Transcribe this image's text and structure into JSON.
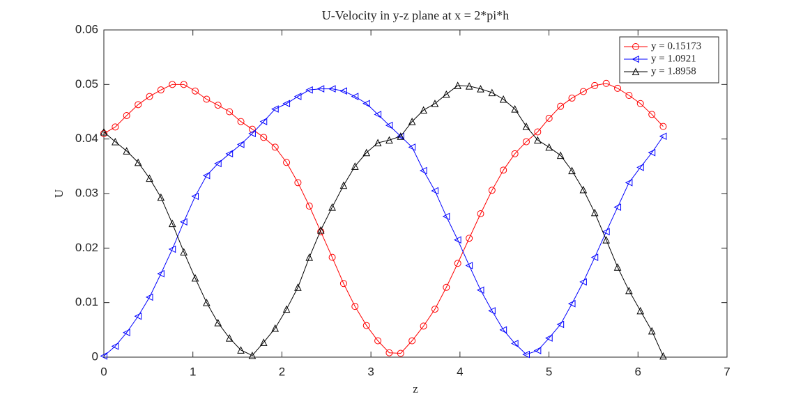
{
  "chart_data": {
    "type": "line",
    "title": "U-Velocity in y-z plane at x = 2*pi*h",
    "x_label": "z",
    "y_label": "U",
    "x": [
      0,
      0.128,
      0.256,
      0.385,
      0.513,
      0.641,
      0.769,
      0.898,
      1.026,
      1.154,
      1.282,
      1.411,
      1.539,
      1.667,
      1.795,
      1.924,
      2.052,
      2.18,
      2.308,
      2.437,
      2.565,
      2.693,
      2.821,
      2.95,
      3.078,
      3.206,
      3.334,
      3.462,
      3.591,
      3.719,
      3.847,
      3.975,
      4.104,
      4.232,
      4.36,
      4.488,
      4.617,
      4.745,
      4.873,
      5.001,
      5.13,
      5.258,
      5.386,
      5.514,
      5.643,
      5.771,
      5.899,
      6.027,
      6.156,
      6.283
    ],
    "series": [
      {
        "name": "y = 0.15173",
        "color": "#ff0000",
        "marker": "circle",
        "values": [
          0.041,
          0.0422,
          0.0443,
          0.0463,
          0.0478,
          0.049,
          0.05,
          0.05,
          0.0488,
          0.0473,
          0.0462,
          0.045,
          0.0432,
          0.0418,
          0.0403,
          0.0385,
          0.0357,
          0.032,
          0.0277,
          0.023,
          0.0183,
          0.0135,
          0.0093,
          0.0058,
          0.003,
          0.0008,
          0.0007,
          0.003,
          0.0057,
          0.0088,
          0.0128,
          0.0172,
          0.0218,
          0.0263,
          0.0306,
          0.0343,
          0.0373,
          0.0395,
          0.0413,
          0.0438,
          0.046,
          0.0475,
          0.0487,
          0.0498,
          0.0502,
          0.0493,
          0.048,
          0.0465,
          0.0445,
          0.0423
        ]
      },
      {
        "name": "y = 1.0921",
        "color": "#0000ff",
        "marker": "triangle-left",
        "values": [
          0.0002,
          0.002,
          0.0045,
          0.0075,
          0.011,
          0.0153,
          0.0198,
          0.0248,
          0.0295,
          0.0333,
          0.0355,
          0.0373,
          0.039,
          0.041,
          0.0432,
          0.0455,
          0.0465,
          0.0478,
          0.049,
          0.0492,
          0.0492,
          0.0488,
          0.0478,
          0.0465,
          0.0445,
          0.0425,
          0.0405,
          0.0385,
          0.0342,
          0.0305,
          0.0258,
          0.0215,
          0.0168,
          0.0123,
          0.0085,
          0.005,
          0.0025,
          0.0005,
          0.0012,
          0.0035,
          0.006,
          0.0098,
          0.0138,
          0.0183,
          0.023,
          0.0275,
          0.032,
          0.0348,
          0.0375,
          0.0405
        ]
      },
      {
        "name": "y = 1.8958",
        "color": "#000000",
        "marker": "triangle-up",
        "values": [
          0.0413,
          0.0395,
          0.0378,
          0.0357,
          0.0328,
          0.0293,
          0.0245,
          0.0193,
          0.0145,
          0.01,
          0.0063,
          0.0035,
          0.0013,
          0.0003,
          0.0027,
          0.0053,
          0.0088,
          0.0128,
          0.0183,
          0.0233,
          0.0275,
          0.0315,
          0.035,
          0.0375,
          0.0393,
          0.0398,
          0.0405,
          0.0432,
          0.0453,
          0.0465,
          0.0482,
          0.0498,
          0.0497,
          0.0492,
          0.0485,
          0.0473,
          0.0455,
          0.0423,
          0.0398,
          0.0385,
          0.037,
          0.0342,
          0.0307,
          0.0265,
          0.0215,
          0.0165,
          0.0122,
          0.0085,
          0.0048,
          0.0002
        ]
      }
    ],
    "xlim": [
      0,
      7
    ],
    "xticks": [
      0,
      1,
      2,
      3,
      4,
      5,
      6,
      7
    ],
    "ylim": [
      0,
      0.06
    ],
    "yticks": [
      0,
      0.01,
      0.02,
      0.03,
      0.04,
      0.05,
      0.06
    ],
    "grid": false,
    "legend": "top-right"
  }
}
